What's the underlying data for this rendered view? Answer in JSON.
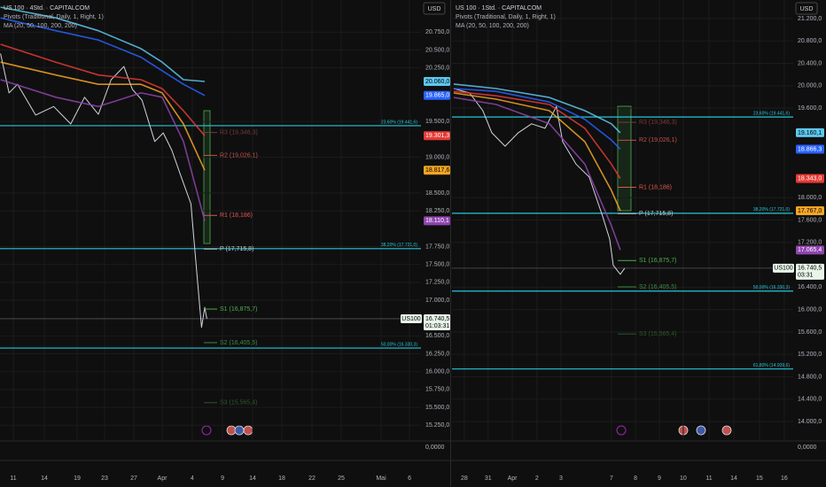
{
  "chart_data": [
    {
      "type": "line",
      "title": "US 100 · 4Std. · CAPITALCOM",
      "indicators": [
        "Pivots (Traditional, Daily, 1, Right, 1)",
        "MA (20, 50, 100, 200, 200)"
      ],
      "currency": "USD",
      "xlim": [
        -1.25,
        38.33
      ],
      "ylim": [
        15030,
        21200
      ],
      "xticks": [
        {
          "value": 0,
          "label": "11"
        },
        {
          "value": 2.92,
          "label": "14"
        },
        {
          "value": 6,
          "label": "19"
        },
        {
          "value": 8.58,
          "label": "23"
        },
        {
          "value": 11.33,
          "label": "27"
        },
        {
          "value": 14,
          "label": "Apr"
        },
        {
          "value": 16.83,
          "label": "4"
        },
        {
          "value": 19.67,
          "label": "9"
        },
        {
          "value": 22.5,
          "label": "14"
        },
        {
          "value": 25.25,
          "label": "18"
        },
        {
          "value": 28.08,
          "label": "22"
        },
        {
          "value": 30.83,
          "label": "25"
        },
        {
          "value": 34.58,
          "label": "Mai"
        },
        {
          "value": 37.25,
          "label": "6"
        }
      ],
      "yticks": [
        {
          "value": 20750,
          "label": "20.750,0"
        },
        {
          "value": 20500,
          "label": "20.500,0"
        },
        {
          "value": 20250,
          "label": "20.250,0"
        },
        {
          "value": 19500,
          "label": "19.500,0"
        },
        {
          "value": 19000,
          "label": "19.000,0"
        },
        {
          "value": 18500,
          "label": "18.500,0"
        },
        {
          "value": 18250,
          "label": "18.250,0"
        },
        {
          "value": 17750,
          "label": "17.750,0"
        },
        {
          "value": 17500,
          "label": "17.500,0"
        },
        {
          "value": 17250,
          "label": "17.250,0"
        },
        {
          "value": 17000,
          "label": "17.000,0"
        },
        {
          "value": 16500,
          "label": "16.500,0"
        },
        {
          "value": 16250,
          "label": "16.250,0"
        },
        {
          "value": 16000,
          "label": "16.000,0"
        },
        {
          "value": 15750,
          "label": "15.750,0"
        },
        {
          "value": 15500,
          "label": "15.500,0"
        },
        {
          "value": 15250,
          "label": "15.250,0"
        }
      ],
      "series": [
        {
          "color": "#d1d4dc",
          "x": [
            -1.2,
            -0.4,
            0.4,
            2.1,
            3.8,
            5.4,
            6.7,
            8,
            9.2,
            10.4,
            11.2,
            12.1,
            13.3,
            14.1,
            14.9,
            15.8,
            16.7,
            17.2,
            17.7,
            18,
            18.2
          ],
          "values": [
            20450,
            19900,
            20020,
            19590,
            19710,
            19465,
            19840,
            19600,
            20085,
            20270,
            19950,
            19800,
            19220,
            19340,
            19100,
            18720,
            18350,
            17480,
            16620,
            16900,
            16740
          ]
        },
        {
          "color": "#5ec8f0",
          "x": [
            -1.2,
            4,
            8,
            12,
            14,
            16,
            18
          ],
          "values": [
            21100,
            20950,
            20770,
            20520,
            20330,
            20085,
            20060
          ]
        },
        {
          "color": "#2962ff",
          "x": [
            -1.2,
            4,
            8,
            12,
            14,
            16,
            18
          ],
          "values": [
            20950,
            20770,
            20640,
            20400,
            20210,
            20020,
            19865
          ]
        },
        {
          "color": "#e53935",
          "x": [
            -1.2,
            4,
            8,
            12,
            14,
            16,
            18
          ],
          "values": [
            20580,
            20330,
            20150,
            20085,
            19960,
            19650,
            19301.3
          ]
        },
        {
          "color": "#f5a623",
          "x": [
            -1.2,
            4,
            8,
            12,
            14,
            16,
            18
          ],
          "values": [
            20330,
            20150,
            20020,
            20020,
            19900,
            19465,
            18817.6
          ]
        },
        {
          "color": "#8e44ad",
          "x": [
            -1.2,
            4,
            8,
            12,
            14,
            16,
            18
          ],
          "values": [
            20085,
            19840,
            19710,
            19900,
            19840,
            19220,
            18110.1
          ]
        }
      ],
      "pivots": [
        {
          "label": "R3 (19,346,3)",
          "value": 19346.3,
          "color": "#7a3a3a"
        },
        {
          "label": "R2 (19,026,1)",
          "value": 19026.1,
          "color": "#c0504d"
        },
        {
          "label": "R1 (18,186)",
          "value": 18186,
          "color": "#e05555"
        },
        {
          "label": "P (17,715,8)",
          "value": 17715.8,
          "color": "#c8c8c8"
        },
        {
          "label": "S1 (16,875,7)",
          "value": 16875.7,
          "color": "#4caf50"
        },
        {
          "label": "S2 (16,405,5)",
          "value": 16405.5,
          "color": "#3d8b40"
        },
        {
          "label": "S3 (15,565,4)",
          "value": 15565.4,
          "color": "#2a5a2c"
        }
      ],
      "fib_levels": [
        {
          "label": "23,60% (19.441,6)",
          "value": 19441.6
        },
        {
          "label": "38,20% (17.721,0)",
          "value": 17721
        },
        {
          "label": "50,00% (16.330,3)",
          "value": 16330.3
        }
      ],
      "price_tags": [
        {
          "value": 20060,
          "label": "20.060,0",
          "color": "#5ec8f0"
        },
        {
          "value": 19865,
          "label": "19.865,0",
          "color": "#2962ff"
        },
        {
          "value": 19301.3,
          "label": "19.301,3",
          "color": "#e53935"
        },
        {
          "value": 18817.6,
          "label": "18.817,6",
          "color": "#f5a623"
        },
        {
          "value": 18110.1,
          "label": "18.110,1",
          "color": "#8e44ad"
        }
      ],
      "last_price": {
        "value": 16740.5,
        "label": "16.740,5",
        "symbol": "US100",
        "countdown": "01:03:31"
      },
      "indicator_ticks": [
        {
          "value": 0,
          "label": "0,0000"
        }
      ]
    },
    {
      "type": "line",
      "title": "US 100 · 1Std. · CAPITALCOM",
      "indicators": [
        "Pivots (Traditional, Daily, 1, Right, 1)",
        "MA (20, 50, 100, 200, 200)"
      ],
      "currency": "USD",
      "xlim": [
        -0.51,
        13.64
      ],
      "ylim": [
        13653,
        21532
      ],
      "xticks": [
        {
          "value": 0,
          "label": "28"
        },
        {
          "value": 0.99,
          "label": "31"
        },
        {
          "value": 1.99,
          "label": "Apr"
        },
        {
          "value": 3.01,
          "label": "2"
        },
        {
          "value": 4.01,
          "label": "3"
        },
        {
          "value": 6.1,
          "label": "7"
        },
        {
          "value": 7.1,
          "label": "8"
        },
        {
          "value": 8.09,
          "label": "9"
        },
        {
          "value": 9.08,
          "label": "10"
        },
        {
          "value": 10.15,
          "label": "11"
        },
        {
          "value": 11.18,
          "label": "14"
        },
        {
          "value": 12.24,
          "label": "15"
        },
        {
          "value": 13.27,
          "label": "16"
        }
      ],
      "yticks": [
        {
          "value": 21200,
          "label": "21.200,0"
        },
        {
          "value": 20800,
          "label": "20.800,0"
        },
        {
          "value": 20400,
          "label": "20.400,0"
        },
        {
          "value": 20000,
          "label": "20.000,0"
        },
        {
          "value": 19600,
          "label": "19.600,0"
        },
        {
          "value": 18000,
          "label": "18.000,0"
        },
        {
          "value": 17600,
          "label": "17.600,0"
        },
        {
          "value": 17200,
          "label": "17.200,0"
        },
        {
          "value": 16400,
          "label": "16.400,0"
        },
        {
          "value": 16000,
          "label": "16.000,0"
        },
        {
          "value": 15600,
          "label": "15.600,0"
        },
        {
          "value": 15200,
          "label": "15.200,0"
        },
        {
          "value": 14800,
          "label": "14.800,0"
        },
        {
          "value": 14400,
          "label": "14.400,0"
        },
        {
          "value": 14000,
          "label": "14.000,0"
        }
      ],
      "series": [
        {
          "color": "#d1d4dc",
          "x": [
            -0.44,
            0.22,
            0.77,
            1.14,
            1.69,
            2.24,
            2.79,
            3.35,
            3.82,
            4.08,
            4.63,
            5.18,
            5.74,
            6.03,
            6.18,
            6.47,
            6.65
          ],
          "values": [
            19950,
            19870,
            19555,
            19160,
            18920,
            19160,
            19320,
            19240,
            19630,
            19000,
            18600,
            18370,
            17660,
            17260,
            16790,
            16630,
            16740
          ]
        },
        {
          "color": "#5ec8f0",
          "x": [
            -0.44,
            1.32,
            3.53,
            5,
            6.1,
            6.47
          ],
          "values": [
            20030,
            19950,
            19790,
            19555,
            19320,
            19160.1
          ]
        },
        {
          "color": "#2962ff",
          "x": [
            -0.44,
            1.32,
            3.53,
            5,
            6.1,
            6.47
          ],
          "values": [
            19950,
            19900,
            19710,
            19400,
            19030,
            18866.3
          ]
        },
        {
          "color": "#e53935",
          "x": [
            -0.44,
            1.32,
            3.53,
            5,
            6.1,
            6.47
          ],
          "values": [
            19900,
            19820,
            19665,
            19240,
            18600,
            18343
          ]
        },
        {
          "color": "#f5a623",
          "x": [
            -0.44,
            1.32,
            3.53,
            5,
            6.1,
            6.47
          ],
          "values": [
            19870,
            19760,
            19555,
            19000,
            18130,
            17767
          ]
        },
        {
          "color": "#8e44ad",
          "x": [
            -0.44,
            1.32,
            3.53,
            5,
            6.1,
            6.47
          ],
          "values": [
            19790,
            19665,
            19320,
            18600,
            17500,
            17065.4
          ]
        }
      ],
      "pivots": [
        {
          "label": "R3 (19,346,3)",
          "value": 19346.3,
          "color": "#7a3a3a"
        },
        {
          "label": "R2 (19,026,1)",
          "value": 19026.1,
          "color": "#c0504d"
        },
        {
          "label": "R1 (18,186)",
          "value": 18186,
          "color": "#e05555"
        },
        {
          "label": "P (17,715,8)",
          "value": 17715.8,
          "color": "#c8c8c8"
        },
        {
          "label": "S1 (16,875,7)",
          "value": 16875.7,
          "color": "#4caf50"
        },
        {
          "label": "S2 (16,405,5)",
          "value": 16405.5,
          "color": "#3d8b40"
        },
        {
          "label": "S3 (15,565,4)",
          "value": 15565.4,
          "color": "#2a5a2c"
        }
      ],
      "fib_levels": [
        {
          "label": "23,60% (19.441,6)",
          "value": 19441.6
        },
        {
          "label": "38,20% (17.721,0)",
          "value": 17721
        },
        {
          "label": "50,00% (16.330,3)",
          "value": 16330.3
        },
        {
          "label": "61,80% (14.939,6)",
          "value": 14939.6
        }
      ],
      "price_tags": [
        {
          "value": 19160.1,
          "label": "19.160,1",
          "color": "#5ec8f0"
        },
        {
          "value": 18866.3,
          "label": "18.866,3",
          "color": "#2962ff"
        },
        {
          "value": 18343,
          "label": "18.343,0",
          "color": "#e53935"
        },
        {
          "value": 17767,
          "label": "17.767,0",
          "color": "#f5a623"
        },
        {
          "value": 17065.4,
          "label": "17.065,4",
          "color": "#8e44ad"
        }
      ],
      "last_price": {
        "value": 16740.5,
        "label": "16.740,5",
        "symbol": "US100",
        "countdown": "03:31"
      },
      "indicator_ticks": [
        {
          "value": 0,
          "label": "0,0000"
        }
      ]
    }
  ]
}
